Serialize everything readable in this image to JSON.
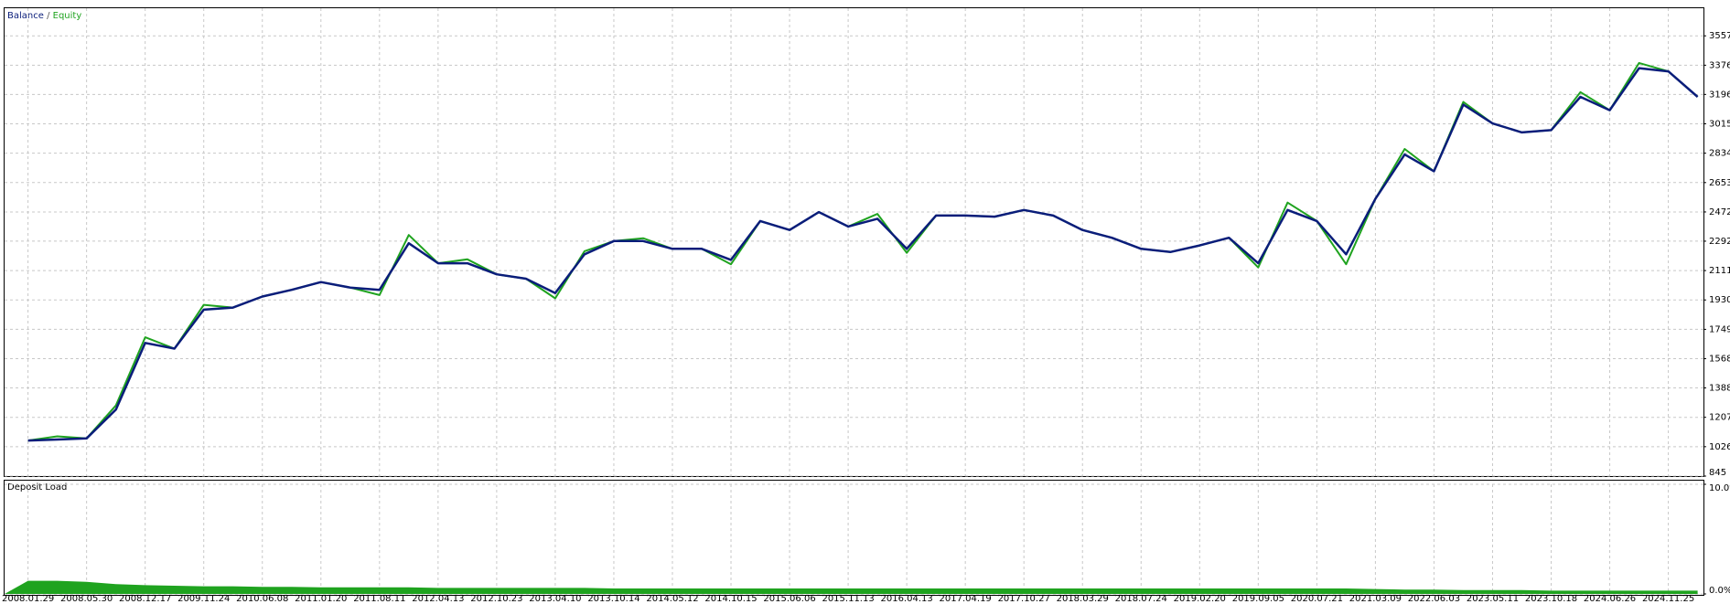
{
  "chart_data": [
    {
      "type": "line",
      "legend_separator": "/",
      "categories": [
        "2008.01.29",
        null,
        "2008.05.30",
        null,
        "2008.12.17",
        null,
        "2009.11.24",
        null,
        "2010.06.08",
        null,
        "2011.01.20",
        null,
        "2011.08.11",
        null,
        "2012.04.13",
        null,
        "2012.10.23",
        null,
        "2013.04.10",
        null,
        "2013.10.14",
        null,
        "2014.05.12",
        null,
        "2014.10.15",
        null,
        "2015.06.06",
        null,
        "2015.11.13",
        null,
        "2016.04.13",
        null,
        "2017.04.19",
        null,
        "2017.10.27",
        null,
        "2018.03.29",
        null,
        "2018.07.24",
        null,
        "2019.02.20",
        null,
        "2019.09.05",
        null,
        "2020.07.21",
        null,
        "2021.03.09",
        null,
        "2022.06.03",
        null,
        "2023.05.11",
        null,
        "2023.10.18",
        null,
        "2024.06.26",
        null,
        "2024.11.25",
        null
      ],
      "series": [
        {
          "name": "Equity",
          "color": "#1fa31f",
          "values": [
            1064,
            1090,
            1077,
            1280,
            1700,
            1630,
            1900,
            1883,
            1951,
            1992,
            2040,
            2006,
            1960,
            2330,
            2156,
            2180,
            2088,
            2061,
            1940,
            2230,
            2293,
            2310,
            2245,
            2245,
            2150,
            2416,
            2361,
            2471,
            2382,
            2460,
            2220,
            2450,
            2450,
            2443,
            2484,
            2450,
            2361,
            2313,
            2245,
            2225,
            2266,
            2313,
            2130,
            2530,
            2416,
            2150,
            2553,
            2860,
            2723,
            3150,
            3017,
            2962,
            2976,
            3210,
            3099,
            3390,
            3338,
            3181
          ]
        },
        {
          "name": "Balance",
          "color": "#0a1d7a",
          "values": [
            1064,
            1070,
            1077,
            1255,
            1665,
            1630,
            1870,
            1883,
            1951,
            1992,
            2040,
            2006,
            1992,
            2279,
            2156,
            2156,
            2088,
            2061,
            1972,
            2211,
            2293,
            2293,
            2245,
            2245,
            2177,
            2416,
            2361,
            2471,
            2382,
            2430,
            2245,
            2450,
            2450,
            2443,
            2484,
            2450,
            2361,
            2313,
            2245,
            2225,
            2266,
            2313,
            2156,
            2484,
            2416,
            2211,
            2553,
            2826,
            2723,
            3133,
            3017,
            2962,
            2976,
            3181,
            3099,
            3358,
            3338,
            3181
          ]
        }
      ],
      "ylim": [
        845,
        3727
      ],
      "yticks": [
        845,
        1026,
        1207,
        1388,
        1568,
        1749,
        1930,
        2111,
        2292,
        2472,
        2653,
        2834,
        3015,
        3196,
        3376,
        3557
      ],
      "grid": true
    },
    {
      "type": "area",
      "title": "Deposit Load",
      "color": "#1fa31f",
      "values": [
        1.2,
        1.2,
        1.1,
        0.9,
        0.8,
        0.75,
        0.7,
        0.7,
        0.65,
        0.65,
        0.6,
        0.6,
        0.6,
        0.6,
        0.55,
        0.55,
        0.55,
        0.55,
        0.55,
        0.55,
        0.5,
        0.5,
        0.5,
        0.5,
        0.5,
        0.5,
        0.5,
        0.5,
        0.5,
        0.5,
        0.5,
        0.5,
        0.5,
        0.5,
        0.5,
        0.5,
        0.5,
        0.5,
        0.5,
        0.5,
        0.5,
        0.5,
        0.5,
        0.5,
        0.5,
        0.5,
        0.45,
        0.4,
        0.4,
        0.35,
        0.35,
        0.35,
        0.3,
        0.3,
        0.3,
        0.3,
        0.3,
        0.3
      ],
      "ylim": [
        0,
        10
      ],
      "yticks": [
        {
          "value": 0,
          "label": "0.0%"
        },
        {
          "value": 10,
          "label": "10.0%"
        }
      ],
      "grid": true
    }
  ]
}
